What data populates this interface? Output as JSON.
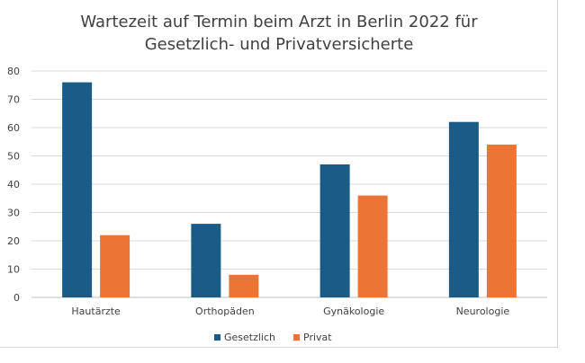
{
  "chart_data": {
    "type": "bar",
    "title_line1": "Wartezeit auf Termin beim Arzt in Berlin 2022 für",
    "title_line2": "Gesetzlich- und Privatversicherte",
    "categories": [
      "Hautärzte",
      "Orthopäden",
      "Gynäkologie",
      "Neurologie"
    ],
    "series": [
      {
        "name": "Gesetzlich",
        "color": "#1a5c85",
        "values": [
          76,
          26,
          47,
          62
        ]
      },
      {
        "name": "Privat",
        "color": "#ec7434",
        "values": [
          22,
          8,
          36,
          54
        ]
      }
    ],
    "ylim": [
      0,
      80
    ],
    "yticks": [
      "0",
      "10",
      "20",
      "30",
      "40",
      "50",
      "60",
      "70",
      "80"
    ],
    "grid": true,
    "legend_position": "bottom"
  }
}
